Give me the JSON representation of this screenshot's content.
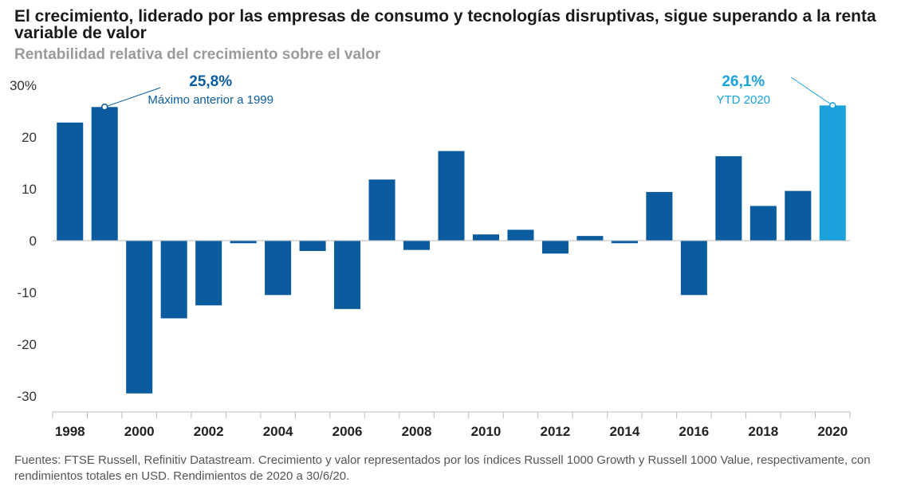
{
  "header": {
    "title": "El crecimiento, liderado por las empresas de consumo y tecnologías disruptivas, sigue superando a la renta variable de valor",
    "subtitle": "Rentabilidad relativa del crecimiento sobre el valor"
  },
  "footnote": "Fuentes: FTSE Russell, Refinitiv Datastream. Crecimiento y valor representados por los índices Russell 1000 Growth y Russell 1000 Value, respectivamente, con rendimientos totales en USD. Rendimientos de 2020 a 30/6/20.",
  "colors": {
    "bar": "#0a5c9e",
    "highlight": "#1ba1dc",
    "axis": "#bbbbbb",
    "text": "#333333"
  },
  "chart_data": {
    "type": "bar",
    "title": "Rentabilidad relativa del crecimiento sobre el valor",
    "xlabel": "",
    "ylabel": "",
    "ylim": [
      -30,
      30
    ],
    "yticks": [
      "30%",
      "20",
      "10",
      "0",
      "-10",
      "-20",
      "-30"
    ],
    "ytick_values": [
      30,
      20,
      10,
      0,
      -10,
      -20,
      -30
    ],
    "categories": [
      "1998",
      "1999",
      "2000",
      "2001",
      "2002",
      "2003",
      "2004",
      "2005",
      "2006",
      "2007",
      "2008",
      "2009",
      "2010",
      "2011",
      "2012",
      "2013",
      "2014",
      "2015",
      "2016",
      "2017",
      "2018",
      "2019",
      "2020"
    ],
    "xtick_labels": [
      "1998",
      "2000",
      "2002",
      "2004",
      "2006",
      "2008",
      "2010",
      "2012",
      "2014",
      "2016",
      "2018",
      "2020"
    ],
    "values": [
      22.8,
      25.8,
      -29.5,
      -15.0,
      -12.5,
      -0.5,
      -10.5,
      -2.0,
      -13.2,
      11.8,
      -1.8,
      17.3,
      1.2,
      2.1,
      -2.5,
      0.9,
      -0.5,
      9.4,
      -10.5,
      16.3,
      6.7,
      9.6,
      26.1
    ],
    "highlight_category": "2020",
    "annotations": [
      {
        "category": "1999",
        "value_label": "25,8%",
        "text": "Máximo anterior a 1999",
        "style": "bar"
      },
      {
        "category": "2020",
        "value_label": "26,1%",
        "text": "YTD 2020",
        "style": "highlight"
      }
    ]
  }
}
